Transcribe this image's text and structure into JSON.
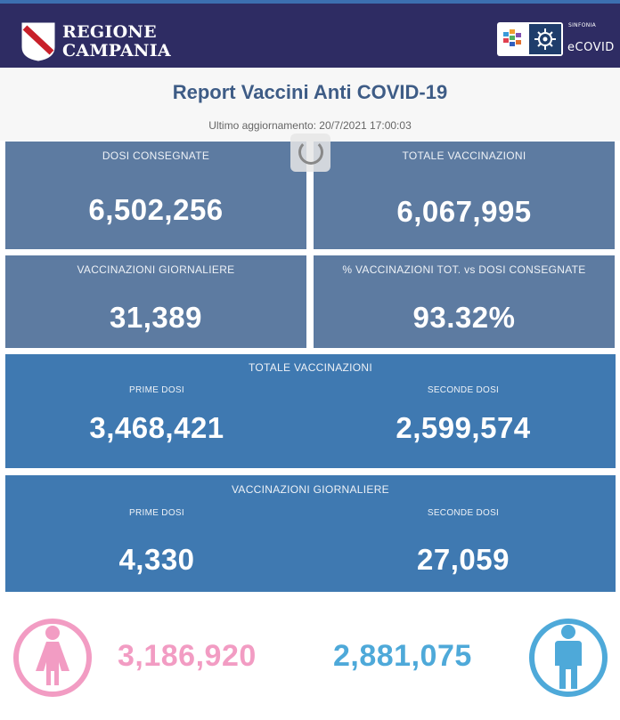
{
  "header": {
    "logo_line1": "REGIONE",
    "logo_line2": "CAMPANIA",
    "sinfonia_label": "SINFONIA",
    "ecovid_label": "eCOVID"
  },
  "report": {
    "title": "Report Vaccini Anti COVID-19",
    "updated": "Ultimo aggiornamento: 20/7/2021  17:00:03"
  },
  "kpis": [
    {
      "label": "DOSI  CONSEGNATE",
      "value": "6,502,256"
    },
    {
      "label": "TOTALE VACCINAZIONI",
      "value": "6,067,995"
    },
    {
      "label": "VACCINAZIONI GIORNALIERE",
      "value": "31,389"
    },
    {
      "label": "% VACCINAZIONI TOT. vs DOSI CONSEGNATE",
      "value": "93.32%"
    }
  ],
  "totale_vaccinazioni": {
    "title": "TOTALE VACCINAZIONI",
    "prime_label": "PRIME DOSI",
    "prime_value": "3,468,421",
    "seconde_label": "SECONDE DOSI",
    "seconde_value": "2,599,574"
  },
  "vaccinazioni_giornaliere": {
    "title": "VACCINAZIONI GIORNALIERE",
    "prime_label": "PRIME DOSI",
    "prime_value": "4,330",
    "seconde_label": "SECONDE DOSI",
    "seconde_value": "27,059"
  },
  "gender": {
    "female_value": "3,186,920",
    "male_value": "2,881,075",
    "female_color": "#f29cc3",
    "male_color": "#4ea9d9",
    "female_icon": "female-person-icon",
    "male_icon": "male-person-icon"
  },
  "colors": {
    "header_bg": "#2e2c63",
    "card_gray_blue": "#5d7ba1",
    "card_blue": "#3f79b1",
    "title_color": "#3e5c86"
  }
}
